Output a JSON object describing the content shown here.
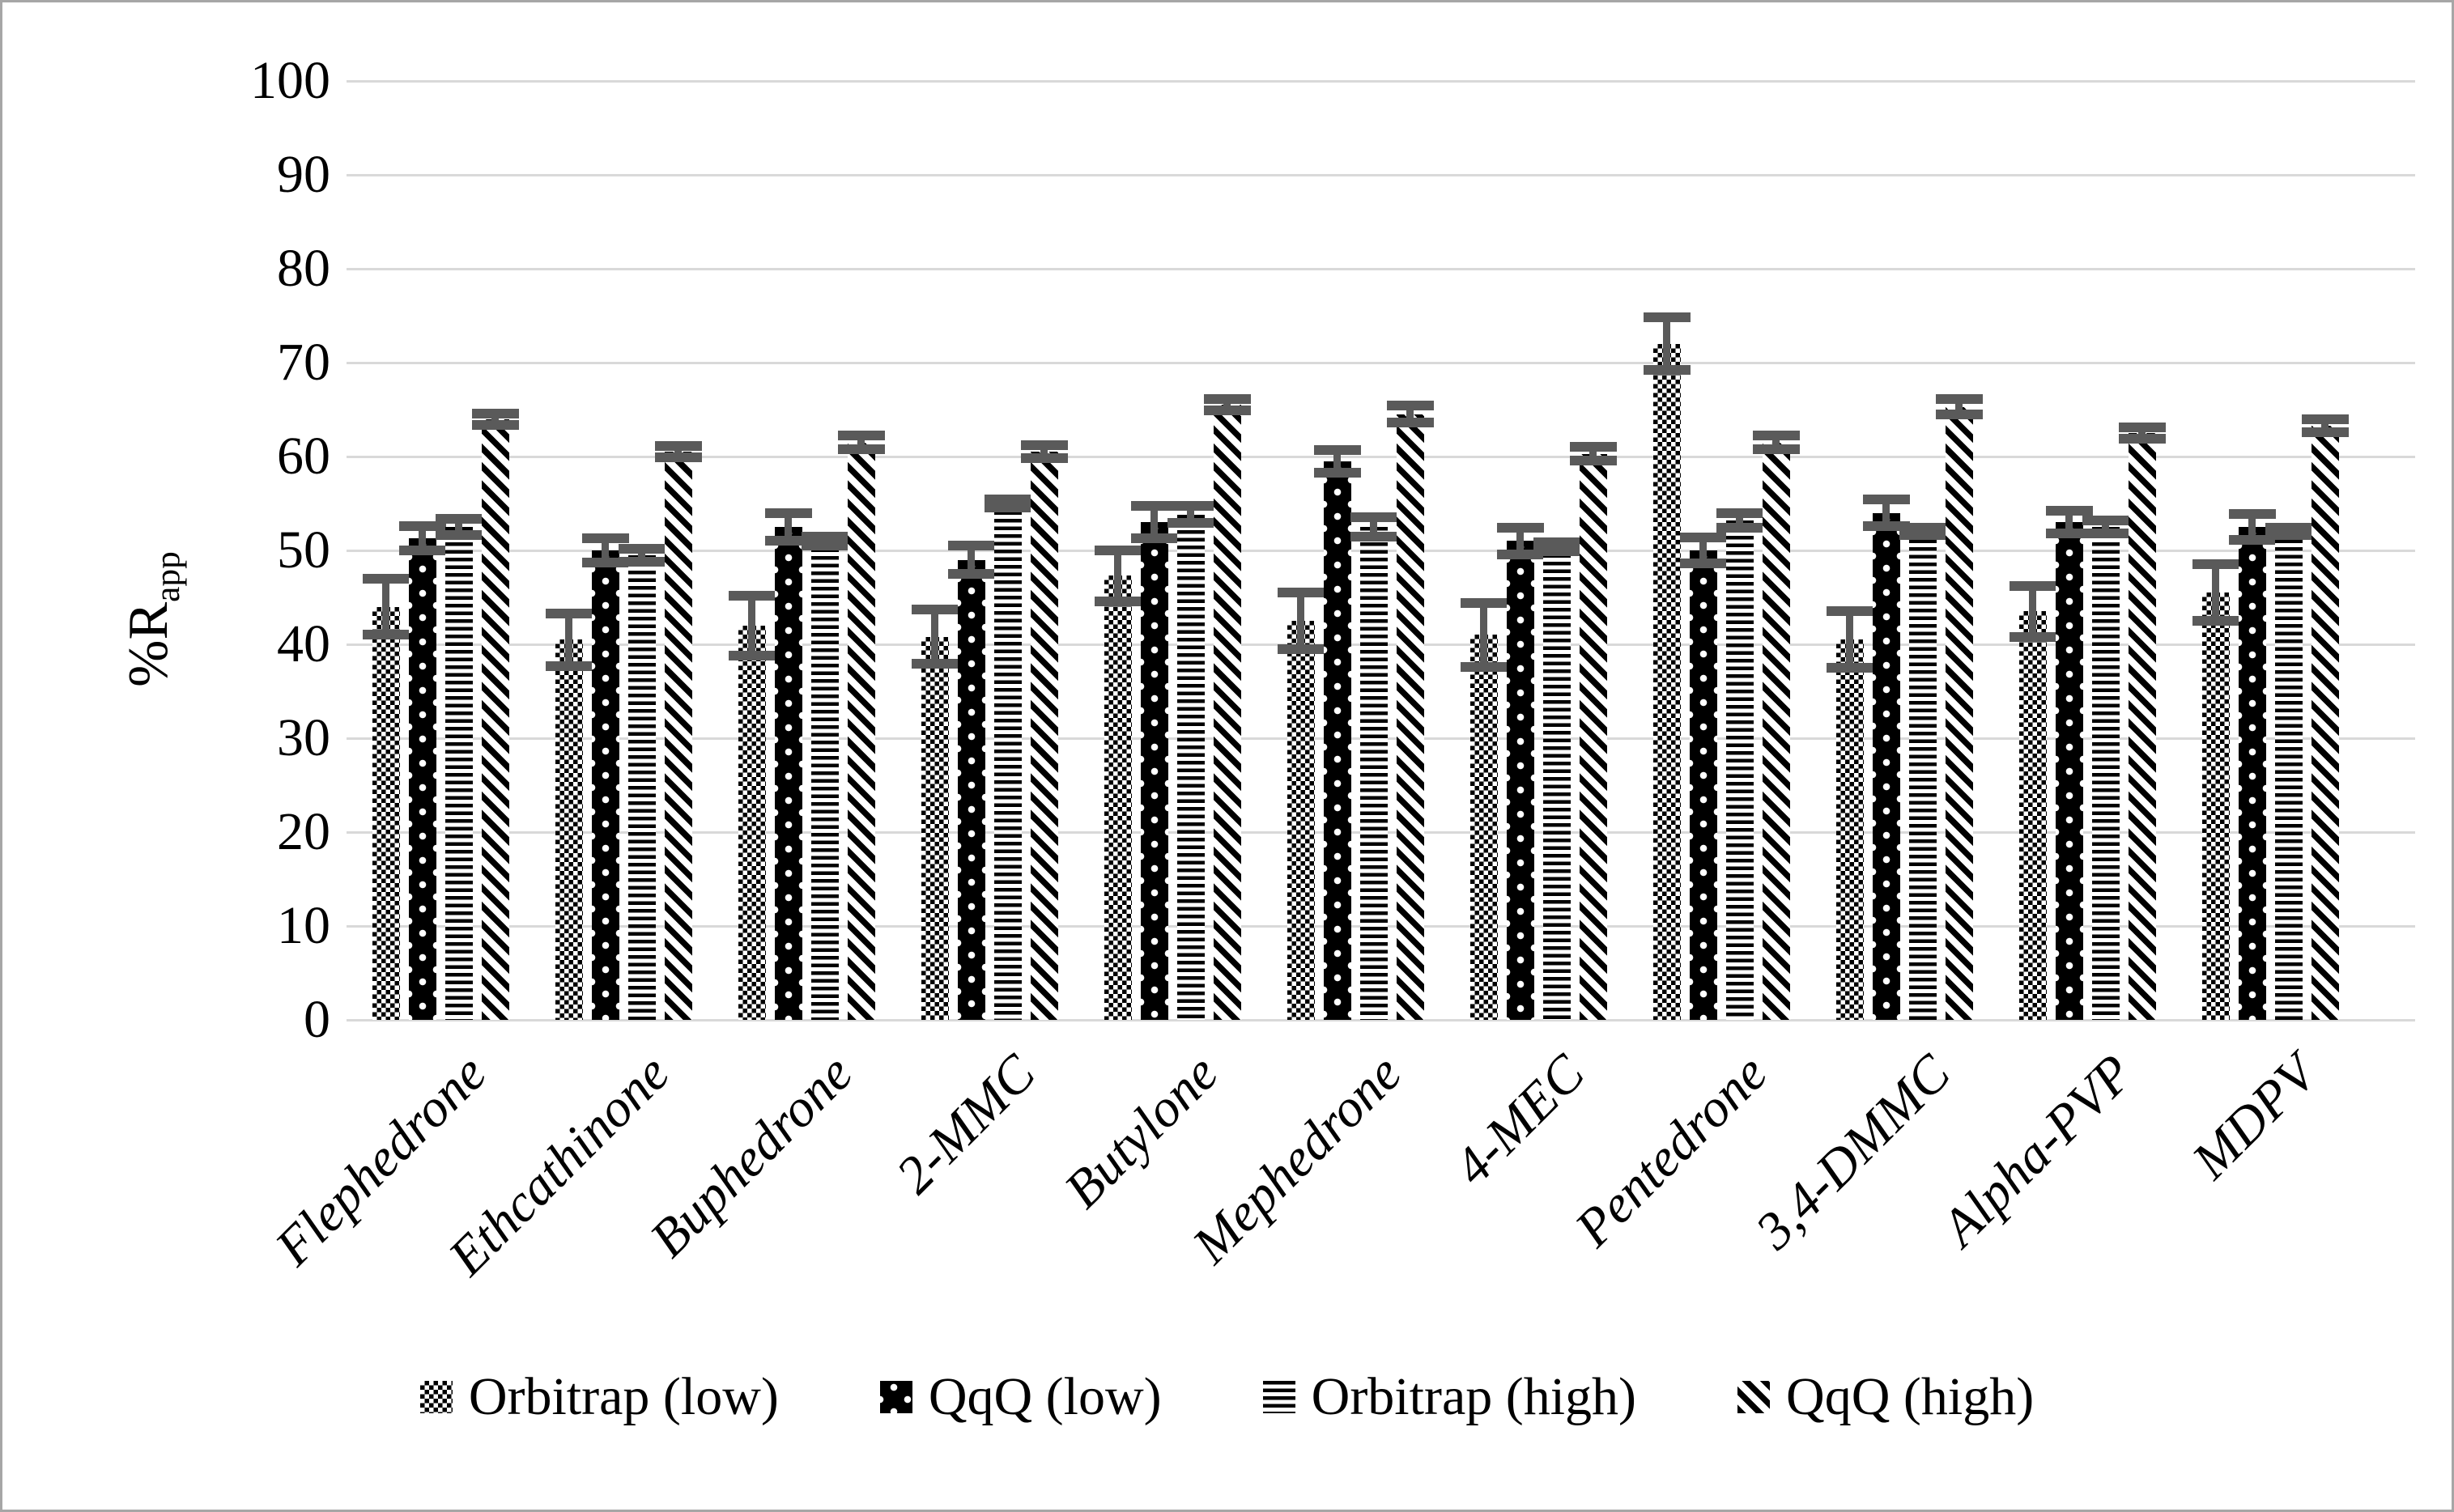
{
  "figure": {
    "background_color": "#ffffff",
    "border_color": "#a6a6a6"
  },
  "chart_data": {
    "type": "bar",
    "title": "",
    "xlabel": "",
    "ylabel_prefix": "%R",
    "ylabel_subscript": "app",
    "ylim": [
      0,
      100
    ],
    "ytick_step": 10,
    "yticks": [
      0,
      10,
      20,
      30,
      40,
      50,
      60,
      70,
      80,
      90,
      100
    ],
    "grid": "horizontal",
    "gridline_color": "#d9d9d9",
    "error_bar_color": "#5a5a5a",
    "bar_color": "#000000",
    "legend_position": "bottom",
    "categories": [
      "Flephedrone",
      "Ethcathinone",
      "Buphedrone",
      "2-MMC",
      "Butylone",
      "Mephedrone",
      "4-MEC",
      "Pentedrone",
      "3,4-DMMC",
      "Alpha-PVP",
      "MDPV"
    ],
    "series": [
      {
        "name": "Orbitrap (low)",
        "pattern": "checkerboard",
        "values": [
          44.0,
          40.5,
          42.0,
          40.8,
          47.3,
          42.5,
          41.0,
          72.0,
          40.5,
          43.5,
          45.5
        ],
        "errors": [
          3.0,
          2.8,
          3.2,
          2.9,
          2.7,
          3.0,
          3.4,
          2.8,
          3.0,
          2.7,
          3.0
        ]
      },
      {
        "name": "QqQ (low)",
        "pattern": "black-white-dots",
        "values": [
          51.3,
          50.0,
          52.5,
          49.0,
          53.0,
          59.5,
          51.0,
          50.0,
          54.0,
          53.0,
          52.5
        ],
        "errors": [
          1.3,
          1.3,
          1.5,
          1.5,
          1.7,
          1.2,
          1.4,
          1.4,
          1.4,
          1.2,
          1.4
        ]
      },
      {
        "name": "Orbitrap (high)",
        "pattern": "horizontal-stripes",
        "values": [
          52.5,
          49.5,
          51.0,
          55.0,
          53.8,
          52.5,
          50.4,
          53.2,
          52.0,
          52.5,
          52.0
        ],
        "errors": [
          0.9,
          0.7,
          0.5,
          0.4,
          0.9,
          1.0,
          0.5,
          0.8,
          0.4,
          0.7,
          0.4
        ]
      },
      {
        "name": "QqQ (high)",
        "pattern": "diagonal-stripes",
        "values": [
          64.0,
          60.5,
          61.5,
          60.5,
          65.5,
          64.5,
          60.3,
          61.5,
          65.3,
          62.5,
          63.3
        ],
        "errors": [
          0.6,
          0.6,
          0.7,
          0.7,
          0.6,
          0.9,
          0.7,
          0.7,
          0.8,
          0.6,
          0.7
        ]
      }
    ]
  }
}
